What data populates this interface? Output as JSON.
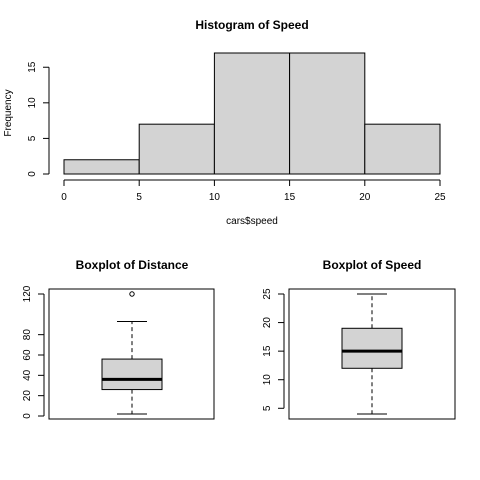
{
  "chart_data": [
    {
      "type": "bar",
      "subtype": "histogram",
      "title": "Histogram of Speed",
      "xlabel": "cars$speed",
      "ylabel": "Frequency",
      "bins": [
        [
          0,
          5
        ],
        [
          5,
          10
        ],
        [
          10,
          15
        ],
        [
          15,
          20
        ],
        [
          20,
          25
        ]
      ],
      "values": [
        2,
        7,
        17,
        17,
        7
      ],
      "xlim": [
        0,
        25
      ],
      "ylim": [
        0,
        17
      ],
      "xticks": [
        0,
        5,
        10,
        15,
        20,
        25
      ],
      "yticks": [
        0,
        5,
        10,
        15
      ],
      "bar_color": "#d3d3d3",
      "grid": false
    },
    {
      "type": "box",
      "title": "Boxplot of Distance",
      "min": 2,
      "q1": 26,
      "median": 36,
      "q3": 56,
      "max": 93,
      "outliers": [
        120
      ],
      "ylim": [
        0,
        120
      ],
      "yticks": [
        0,
        20,
        40,
        60,
        80,
        120
      ],
      "box_color": "#d3d3d3"
    },
    {
      "type": "box",
      "title": "Boxplot of Speed",
      "min": 4,
      "q1": 12,
      "median": 15,
      "q3": 19,
      "max": 25,
      "outliers": [],
      "ylim": [
        4,
        25
      ],
      "yticks": [
        5,
        10,
        15,
        20,
        25
      ],
      "box_color": "#d3d3d3"
    }
  ]
}
